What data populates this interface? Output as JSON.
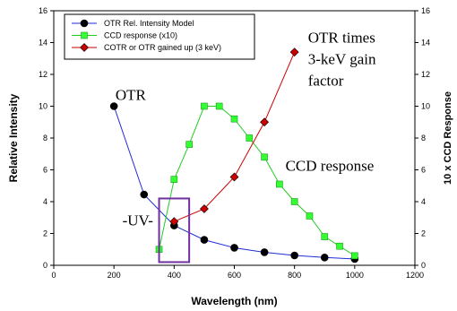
{
  "chart_data": {
    "type": "line",
    "xlabel": "Wavelength (nm)",
    "ylabel": "Relative Intensity",
    "ylabel_right": "10 x CCD Response",
    "xlim": [
      0,
      1200
    ],
    "ylim": [
      0,
      16
    ],
    "x_ticks": [
      0,
      200,
      400,
      600,
      800,
      1000,
      1200
    ],
    "y_ticks": [
      0,
      2,
      4,
      6,
      8,
      10,
      12,
      14,
      16
    ],
    "y2_ticks": [
      0,
      2,
      4,
      6,
      8,
      10,
      12,
      14,
      16
    ],
    "grid": false,
    "legend_position": "top-left",
    "series": [
      {
        "name": "OTR Rel. Intensity Model",
        "color": "#1f2dd6",
        "marker": "circle",
        "marker_color": "#000000",
        "x": [
          200,
          300,
          400,
          500,
          600,
          700,
          800,
          900,
          1000
        ],
        "y": [
          10.0,
          4.45,
          2.5,
          1.6,
          1.1,
          0.82,
          0.62,
          0.49,
          0.4
        ]
      },
      {
        "name": "CCD response (x10)",
        "color": "#22cc22",
        "marker": "square",
        "marker_color": "#33ff33",
        "x": [
          350,
          400,
          450,
          500,
          550,
          600,
          650,
          700,
          750,
          800,
          850,
          900,
          950,
          1000
        ],
        "y": [
          1.0,
          5.4,
          7.6,
          10.0,
          10.0,
          9.2,
          8.0,
          6.8,
          5.1,
          4.0,
          3.1,
          1.8,
          1.2,
          0.6
        ]
      },
      {
        "name": "COTR or OTR gained up (3 keV)",
        "color": "#cc0000",
        "marker": "diamond",
        "marker_color": "#cc0000",
        "x": [
          400,
          500,
          600,
          700,
          800
        ],
        "y": [
          2.75,
          3.55,
          5.55,
          9.0,
          13.4
        ]
      }
    ],
    "annotations": [
      {
        "text": "OTR",
        "x": 205,
        "y": 10.4
      },
      {
        "text": "OTR times",
        "x": 845,
        "y": 14.0
      },
      {
        "text": "3-keV gain",
        "x": 845,
        "y": 12.65
      },
      {
        "text": "factor",
        "x": 845,
        "y": 11.3
      },
      {
        "text": "CCD response",
        "x": 770,
        "y": 5.95
      },
      {
        "text": "-UV-",
        "x": 228,
        "y": 2.5
      }
    ],
    "highlight_box": {
      "x": [
        350,
        450
      ],
      "y": [
        0.2,
        4.2
      ],
      "color": "#7030a0"
    }
  }
}
